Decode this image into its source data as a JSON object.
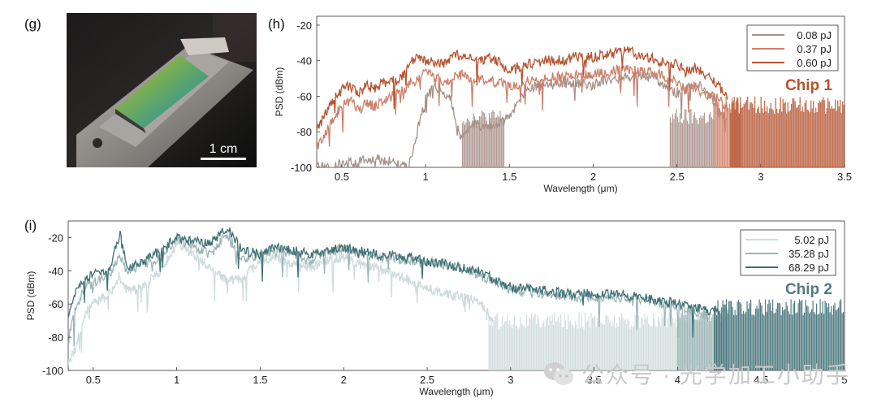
{
  "panels": {
    "g": "(g)",
    "h": "(h)",
    "i": "(i)"
  },
  "photo": {
    "scale_bar_label": "1 cm"
  },
  "watermark": {
    "text": "公众号 · 光学加工小助手",
    "icon": "wechat-icon"
  },
  "chart_data": [
    {
      "type": "line",
      "id": "h",
      "chip_label": "Chip 1",
      "chip_color": "#b5532f",
      "xlabel": "Wavelength (μm)",
      "ylabel": "PSD (dBm)",
      "xlim": [
        0.35,
        3.5
      ],
      "ylim": [
        -100,
        -15
      ],
      "xticks": [
        0.5,
        1,
        1.5,
        2,
        2.5,
        3,
        3.5
      ],
      "yticks": [
        -100,
        -80,
        -60,
        -40,
        -20
      ],
      "xtick_labels": [
        "0.5",
        "1",
        "1.5",
        "2",
        "2.5",
        "3",
        "3.5"
      ],
      "ytick_labels": [
        "-100",
        "-80",
        "-60",
        "-40",
        "-20"
      ],
      "legend_position": "top-right",
      "series": [
        {
          "name": "0.08 pJ",
          "color": "#a89088",
          "x": [
            0.35,
            0.45,
            0.55,
            0.65,
            0.75,
            0.85,
            0.9,
            0.95,
            1.0,
            1.05,
            1.1,
            1.15,
            1.2,
            1.3,
            1.4,
            1.5,
            1.6,
            1.7,
            1.8,
            1.9,
            2.0,
            2.1,
            2.2,
            2.3,
            2.4,
            2.45,
            2.5,
            2.55,
            2.6,
            2.65,
            2.7,
            2.75,
            2.8
          ],
          "y": [
            -100,
            -99,
            -97,
            -95,
            -96,
            -98,
            -100,
            -80,
            -62,
            -54,
            -58,
            -62,
            -82,
            -76,
            -78,
            -72,
            -56,
            -54,
            -53,
            -52,
            -54,
            -50,
            -49,
            -48,
            -52,
            -56,
            -58,
            -56,
            -54,
            -55,
            -60,
            -66,
            -74
          ],
          "noise_floor_x": [
            [
              1.22,
              1.47
            ],
            [
              2.46,
              2.72
            ]
          ],
          "noise_floor_top": -72
        },
        {
          "name": "0.37 pJ",
          "color": "#cc7f69",
          "x": [
            0.35,
            0.4,
            0.45,
            0.5,
            0.55,
            0.6,
            0.65,
            0.7,
            0.75,
            0.8,
            0.85,
            0.9,
            0.95,
            1.0,
            1.1,
            1.2,
            1.3,
            1.4,
            1.5,
            1.6,
            1.7,
            1.8,
            1.9,
            2.0,
            2.1,
            2.2,
            2.3,
            2.4,
            2.5,
            2.55,
            2.6,
            2.65,
            2.7,
            2.75,
            2.8
          ],
          "y": [
            -90,
            -82,
            -72,
            -66,
            -62,
            -68,
            -64,
            -66,
            -62,
            -60,
            -58,
            -54,
            -50,
            -46,
            -52,
            -48,
            -50,
            -52,
            -54,
            -52,
            -50,
            -49,
            -48,
            -48,
            -46,
            -45,
            -46,
            -48,
            -52,
            -56,
            -54,
            -58,
            -60,
            -62,
            -66
          ],
          "noise_floor_x": [
            [
              2.72,
              2.88
            ]
          ],
          "noise_floor_top": -65
        },
        {
          "name": "0.60 pJ",
          "color": "#b5532f",
          "x": [
            0.35,
            0.4,
            0.45,
            0.5,
            0.55,
            0.6,
            0.65,
            0.7,
            0.75,
            0.8,
            0.85,
            0.9,
            0.95,
            1.0,
            1.1,
            1.2,
            1.3,
            1.4,
            1.5,
            1.6,
            1.7,
            1.8,
            1.9,
            2.0,
            2.1,
            2.2,
            2.3,
            2.4,
            2.5,
            2.55,
            2.6,
            2.65,
            2.7,
            2.75,
            2.8
          ],
          "y": [
            -80,
            -70,
            -62,
            -56,
            -54,
            -58,
            -54,
            -56,
            -52,
            -52,
            -50,
            -42,
            -38,
            -40,
            -42,
            -36,
            -40,
            -38,
            -46,
            -42,
            -40,
            -40,
            -38,
            -38,
            -36,
            -34,
            -38,
            -40,
            -42,
            -46,
            -44,
            -46,
            -50,
            -54,
            -62
          ],
          "noise_floor_x": [
            [
              2.82,
              3.5
            ]
          ],
          "noise_floor_top": -65
        }
      ]
    },
    {
      "type": "line",
      "id": "i",
      "chip_label": "Chip 2",
      "chip_color": "#4f7a80",
      "xlabel": "Wavelength (μm)",
      "ylabel": "PSD (dBm)",
      "xlim": [
        0.35,
        5.0
      ],
      "ylim": [
        -100,
        -10
      ],
      "xticks": [
        0.5,
        1,
        1.5,
        2,
        2.5,
        3,
        3.5,
        4,
        4.5,
        5
      ],
      "yticks": [
        -100,
        -80,
        -60,
        -40,
        -20
      ],
      "xtick_labels": [
        "0.5",
        "1",
        "1.5",
        "2",
        "2.5",
        "3",
        "3.5",
        "4",
        "4.5",
        "5"
      ],
      "ytick_labels": [
        "-100",
        "-80",
        "-60",
        "-40",
        "-20"
      ],
      "legend_position": "top-right",
      "series": [
        {
          "name": "5.02 pJ",
          "color": "#cfdcdc",
          "x": [
            0.35,
            0.4,
            0.45,
            0.5,
            0.6,
            0.66,
            0.7,
            0.8,
            0.9,
            1.0,
            1.1,
            1.2,
            1.3,
            1.4,
            1.5,
            1.6,
            1.7,
            1.8,
            1.9,
            2.0,
            2.1,
            2.2,
            2.3,
            2.4,
            2.5,
            2.6,
            2.7,
            2.8,
            2.9
          ],
          "y": [
            -96,
            -85,
            -66,
            -60,
            -54,
            -42,
            -52,
            -50,
            -40,
            -24,
            -30,
            -38,
            -46,
            -44,
            -34,
            -32,
            -36,
            -38,
            -34,
            -32,
            -36,
            -38,
            -42,
            -46,
            -50,
            -54,
            -56,
            -58,
            -70
          ],
          "noise_floor_x": [
            [
              2.87,
              4.2
            ]
          ],
          "noise_floor_top": -70
        },
        {
          "name": "35.28 pJ",
          "color": "#9bb5b5",
          "x": [
            0.35,
            0.4,
            0.45,
            0.5,
            0.6,
            0.66,
            0.7,
            0.8,
            0.9,
            1.0,
            1.1,
            1.2,
            1.3,
            1.4,
            1.5,
            1.6,
            1.7,
            1.8,
            1.9,
            2.0,
            2.2,
            2.4,
            2.6,
            2.8,
            3.0,
            3.2,
            3.4,
            3.6,
            3.8,
            4.0,
            4.1,
            4.2
          ],
          "y": [
            -82,
            -60,
            -50,
            -48,
            -42,
            -30,
            -40,
            -36,
            -32,
            -20,
            -26,
            -30,
            -18,
            -34,
            -30,
            -28,
            -30,
            -34,
            -28,
            -27,
            -32,
            -34,
            -36,
            -42,
            -52,
            -54,
            -56,
            -56,
            -58,
            -62,
            -64,
            -68
          ],
          "noise_floor_x": [
            [
              4.0,
              4.3
            ]
          ],
          "noise_floor_top": -66
        },
        {
          "name": "68.29 pJ",
          "color": "#3f6f75",
          "x": [
            0.35,
            0.4,
            0.45,
            0.5,
            0.6,
            0.66,
            0.7,
            0.8,
            0.9,
            1.0,
            1.1,
            1.2,
            1.3,
            1.4,
            1.5,
            1.6,
            1.7,
            1.8,
            1.9,
            2.0,
            2.2,
            2.4,
            2.6,
            2.8,
            3.0,
            3.2,
            3.4,
            3.6,
            3.8,
            4.0,
            4.2,
            4.25
          ],
          "y": [
            -70,
            -50,
            -45,
            -42,
            -38,
            -18,
            -38,
            -34,
            -28,
            -20,
            -22,
            -24,
            -14,
            -28,
            -30,
            -26,
            -28,
            -30,
            -28,
            -26,
            -30,
            -32,
            -36,
            -40,
            -50,
            -52,
            -54,
            -54,
            -56,
            -60,
            -64,
            -66
          ],
          "noise_floor_x": [
            [
              4.22,
              5.0
            ]
          ],
          "noise_floor_top": -62
        }
      ]
    }
  ]
}
